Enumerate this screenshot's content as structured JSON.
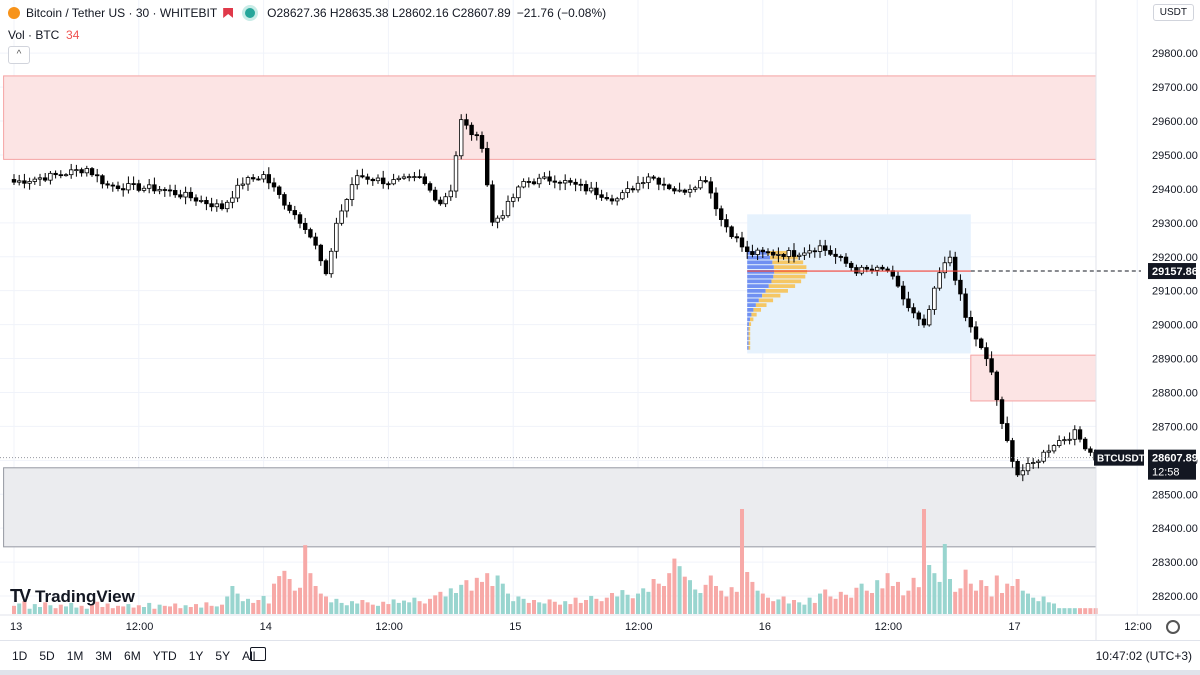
{
  "header": {
    "symbol": "Bitcoin / Tether US · 30 · WHITEBIT",
    "ohlc": "O28627.36 H28635.38 L28602.16 C28607.89",
    "change": "−21.76 (−0.08%)",
    "vol_label": "Vol · BTC",
    "vol_value": "34",
    "collapse": "^"
  },
  "currency": "USDT",
  "logo": {
    "mark": "TV",
    "text": "TradingView"
  },
  "price_labels": {
    "hline": "29157.86",
    "symbol": "BTCUSDT",
    "last": "28607.89",
    "countdown": "12:58"
  },
  "bottom": {
    "periods": [
      "1D",
      "5D",
      "1M",
      "3M",
      "6M",
      "YTD",
      "1Y",
      "5Y",
      "All"
    ],
    "clock": "10:47:02 (UTC+3)"
  },
  "colors": {
    "up": "#26a69a",
    "down": "#ef5350",
    "candle_up": "#ffffff",
    "candle_down": "#000000",
    "supply_zone": "#fce4e4",
    "demand_zone": "#ebecef",
    "volume_profile_box": "#e6f2fd",
    "hline": "#f44336"
  },
  "chart_data": {
    "type": "candlestick",
    "symbol": "BTCUSDT",
    "timeframe": "30",
    "ylim": [
      28150,
      29830
    ],
    "y_ticks": [
      "29800.00",
      "29700.00",
      "29600.00",
      "29500.00",
      "29400.00",
      "29300.00",
      "29200.00",
      "29100.00",
      "29000.00",
      "28900.00",
      "28800.00",
      "28700.00",
      "28600.00",
      "28500.00",
      "28400.00",
      "28300.00",
      "28200.00"
    ],
    "x_ticks": [
      "13",
      "12:00",
      "14",
      "12:00",
      "15",
      "12:00",
      "16",
      "12:00",
      "17",
      "12:00"
    ],
    "x_tick_bars": [
      0,
      24,
      48,
      72,
      96,
      120,
      144,
      168,
      192,
      216
    ],
    "zones": [
      {
        "kind": "supply",
        "bar_start": -2,
        "bar_end": 209,
        "top": 29733,
        "bottom": 29487
      },
      {
        "kind": "volume_profile",
        "bar_start": 141,
        "bar_end": 184,
        "top": 29325,
        "bottom": 28915
      },
      {
        "kind": "supply",
        "bar_start": 184,
        "bar_end": 209,
        "top": 28910,
        "bottom": 28775
      },
      {
        "kind": "demand",
        "bar_start": -2,
        "bar_end": 209,
        "top": 28578,
        "bottom": 28345
      }
    ],
    "hline": 29157.86,
    "last_price": 28607.89,
    "anchors": [
      [
        0,
        29420
      ],
      [
        8,
        29440
      ],
      [
        14,
        29460
      ],
      [
        18,
        29410
      ],
      [
        28,
        29400
      ],
      [
        34,
        29375
      ],
      [
        40,
        29345
      ],
      [
        44,
        29420
      ],
      [
        48,
        29440
      ],
      [
        52,
        29360
      ],
      [
        56,
        29290
      ],
      [
        58,
        29230
      ],
      [
        60,
        29140
      ],
      [
        62,
        29300
      ],
      [
        66,
        29440
      ],
      [
        72,
        29420
      ],
      [
        78,
        29430
      ],
      [
        82,
        29360
      ],
      [
        84,
        29400
      ],
      [
        86,
        29600
      ],
      [
        90,
        29530
      ],
      [
        92,
        29300
      ],
      [
        94,
        29330
      ],
      [
        98,
        29420
      ],
      [
        104,
        29430
      ],
      [
        110,
        29400
      ],
      [
        116,
        29370
      ],
      [
        122,
        29440
      ],
      [
        128,
        29390
      ],
      [
        133,
        29430
      ],
      [
        136,
        29310
      ],
      [
        138,
        29270
      ],
      [
        141,
        29210
      ],
      [
        150,
        29210
      ],
      [
        155,
        29230
      ],
      [
        162,
        29160
      ],
      [
        168,
        29160
      ],
      [
        172,
        29050
      ],
      [
        175,
        28990
      ],
      [
        178,
        29150
      ],
      [
        180,
        29200
      ],
      [
        183,
        29020
      ],
      [
        185,
        28960
      ],
      [
        188,
        28860
      ],
      [
        190,
        28700
      ],
      [
        193,
        28560
      ],
      [
        196,
        28590
      ],
      [
        200,
        28650
      ],
      [
        204,
        28680
      ],
      [
        208,
        28608
      ]
    ],
    "volume": [
      14,
      18,
      22,
      9,
      17,
      12,
      20,
      15,
      10,
      16,
      13,
      19,
      11,
      14,
      9,
      16,
      21,
      12,
      18,
      10,
      14,
      13,
      17,
      11,
      15,
      12,
      19,
      9,
      16,
      14,
      13,
      18,
      10,
      15,
      12,
      17,
      11,
      20,
      14,
      13,
      16,
      30,
      48,
      35,
      22,
      26,
      19,
      24,
      31,
      18,
      52,
      65,
      74,
      60,
      40,
      45,
      118,
      70,
      48,
      35,
      30,
      20,
      26,
      19,
      15,
      22,
      18,
      24,
      20,
      16,
      14,
      21,
      17,
      25,
      19,
      23,
      20,
      28,
      22,
      18,
      26,
      32,
      38,
      30,
      44,
      36,
      50,
      58,
      40,
      62,
      55,
      70,
      48,
      66,
      52,
      35,
      22,
      30,
      26,
      19,
      24,
      20,
      18,
      25,
      21,
      16,
      22,
      17,
      28,
      19,
      24,
      31,
      26,
      22,
      28,
      36,
      30,
      41,
      33,
      27,
      35,
      44,
      38,
      60,
      52,
      48,
      70,
      95,
      82,
      64,
      58,
      42,
      36,
      50,
      66,
      48,
      40,
      30,
      46,
      38,
      180,
      72,
      55,
      40,
      35,
      28,
      22,
      25,
      30,
      18,
      24,
      20,
      16,
      28,
      19,
      35,
      42,
      30,
      26,
      38,
      33,
      28,
      45,
      52,
      40,
      36,
      58,
      44,
      70,
      48,
      55,
      32,
      40,
      62,
      46,
      180,
      84,
      70,
      55,
      120,
      60,
      38,
      44,
      76,
      52,
      40,
      58,
      48,
      30,
      66,
      36,
      52,
      48,
      60,
      40,
      35,
      28,
      22,
      30,
      20,
      18
    ]
  }
}
